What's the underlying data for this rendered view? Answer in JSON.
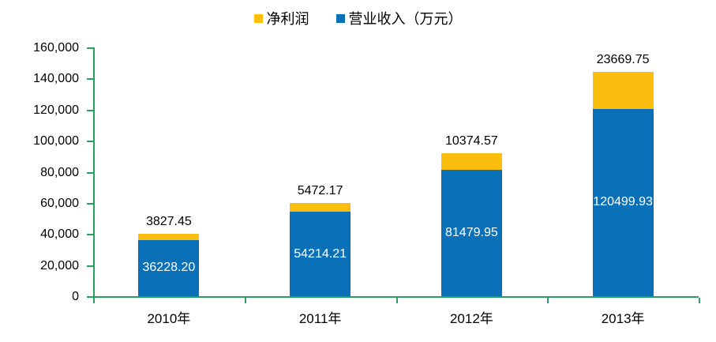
{
  "chart_data": {
    "type": "bar",
    "stacked": true,
    "title": "",
    "xlabel": "",
    "ylabel": "",
    "categories": [
      "2010年",
      "2011年",
      "2012年",
      "2013年"
    ],
    "series": [
      {
        "name": "营业收入（万元）",
        "color": "#0a70b8",
        "values": [
          36228.2,
          54214.21,
          81479.95,
          120499.93
        ],
        "label_position": "inside",
        "label_color": "#ffffff"
      },
      {
        "name": "净利润",
        "color": "#fbbe0f",
        "values": [
          3827.45,
          5472.17,
          10374.57,
          23669.75
        ],
        "label_position": "above-total",
        "label_color": "#000000"
      }
    ],
    "data_labels": {
      "inside_blue": [
        "36228.20",
        "54214.21",
        "81479.95",
        "120499.93"
      ],
      "above_total": [
        "3827.45",
        "5472.17",
        "10374.57",
        "23669.75"
      ]
    },
    "legend": [
      {
        "label": "净利润",
        "color": "#fbbe0f"
      },
      {
        "label": "营业收入（万元）",
        "color": "#0a70b8"
      }
    ],
    "legend_position": "top-center",
    "ylim": [
      0,
      160000
    ],
    "ytick_step": 20000,
    "ytick_labels": [
      "0",
      "20,000",
      "40,000",
      "60,000",
      "80,000",
      "100,000",
      "120,000",
      "140,000",
      "160,000"
    ],
    "grid": false,
    "axis_color": "#27a05f"
  }
}
